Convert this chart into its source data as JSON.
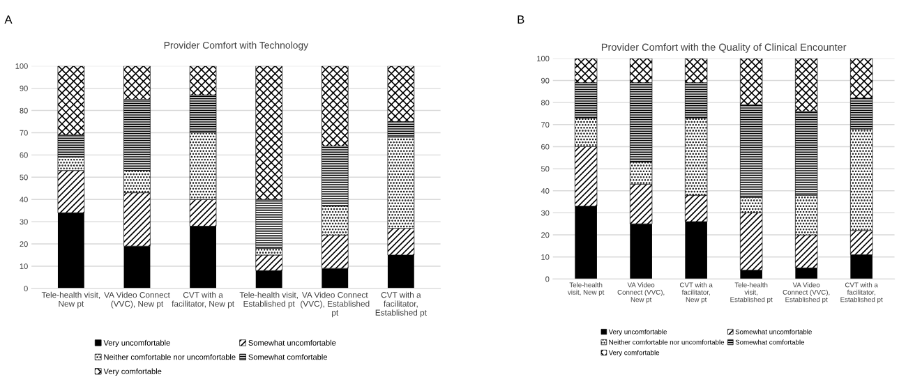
{
  "chart_data": [
    {
      "type": "bar",
      "stacked": true,
      "title": "Provider Comfort with Technology",
      "annotations": [
        "A"
      ],
      "categories": [
        "Tele-health visit, New pt",
        "VA Video Connect (VVC), New pt",
        "CVT with a facilitator, New pt",
        "Tele-health visit, Established pt",
        "VA Video Connect (VVC), Established pt",
        "CVT with a facilitator, Established pt"
      ],
      "series": [
        {
          "name": "Very uncomfortable",
          "color": "#000000",
          "values": [
            34,
            19,
            28,
            8,
            9,
            15
          ]
        },
        {
          "name": "Somewhat uncomfortable",
          "color": "#000000",
          "values": [
            19,
            24,
            12,
            7,
            15,
            12
          ]
        },
        {
          "name": "Neither comfortable nor uncomfortable",
          "color": "#000000",
          "values": [
            6,
            10,
            30,
            3,
            13,
            41
          ]
        },
        {
          "name": "Somewhat comfortable",
          "color": "#000000",
          "values": [
            10,
            32,
            17,
            22,
            27,
            7
          ]
        },
        {
          "name": "Very comfortable",
          "color": "#000000",
          "values": [
            31,
            15,
            13,
            60,
            36,
            25
          ]
        }
      ],
      "ylim": [
        0,
        100
      ],
      "yticks": [
        0,
        10,
        20,
        30,
        40,
        50,
        60,
        70,
        80,
        90,
        100
      ],
      "grid": "y",
      "legend": "bottom"
    },
    {
      "type": "bar",
      "stacked": true,
      "title": "Provider Comfort with the Quality of Clinical Encounter",
      "annotations": [
        "B"
      ],
      "categories": [
        "Tele-health visit, New pt",
        "VA Video Connect (VVC), New pt",
        "CVT with a facilitator, New pt",
        "Tele-health visit, Established pt",
        "VA Video Connect (VVC), Established pt",
        "CVT with a facilitator, Established pt"
      ],
      "series": [
        {
          "name": "Very uncomfortable",
          "color": "#000000",
          "values": [
            33,
            25,
            26,
            4,
            5,
            11
          ]
        },
        {
          "name": "Somewhat uncomfortable",
          "color": "#000000",
          "values": [
            27,
            18,
            12,
            26,
            15,
            11
          ]
        },
        {
          "name": "Neither comfortable nor uncomfortable",
          "color": "#000000",
          "values": [
            13,
            10,
            35,
            7,
            18,
            46
          ]
        },
        {
          "name": "Somewhat comfortable",
          "color": "#000000",
          "values": [
            16,
            36,
            16,
            42,
            38,
            14
          ]
        },
        {
          "name": "Very comfortable",
          "color": "#000000",
          "values": [
            11,
            11,
            11,
            21,
            24,
            18
          ]
        }
      ],
      "ylim": [
        0,
        100
      ],
      "yticks": [
        0,
        10,
        20,
        30,
        40,
        50,
        60,
        70,
        80,
        90,
        100
      ],
      "grid": "y",
      "legend": "bottom"
    }
  ]
}
